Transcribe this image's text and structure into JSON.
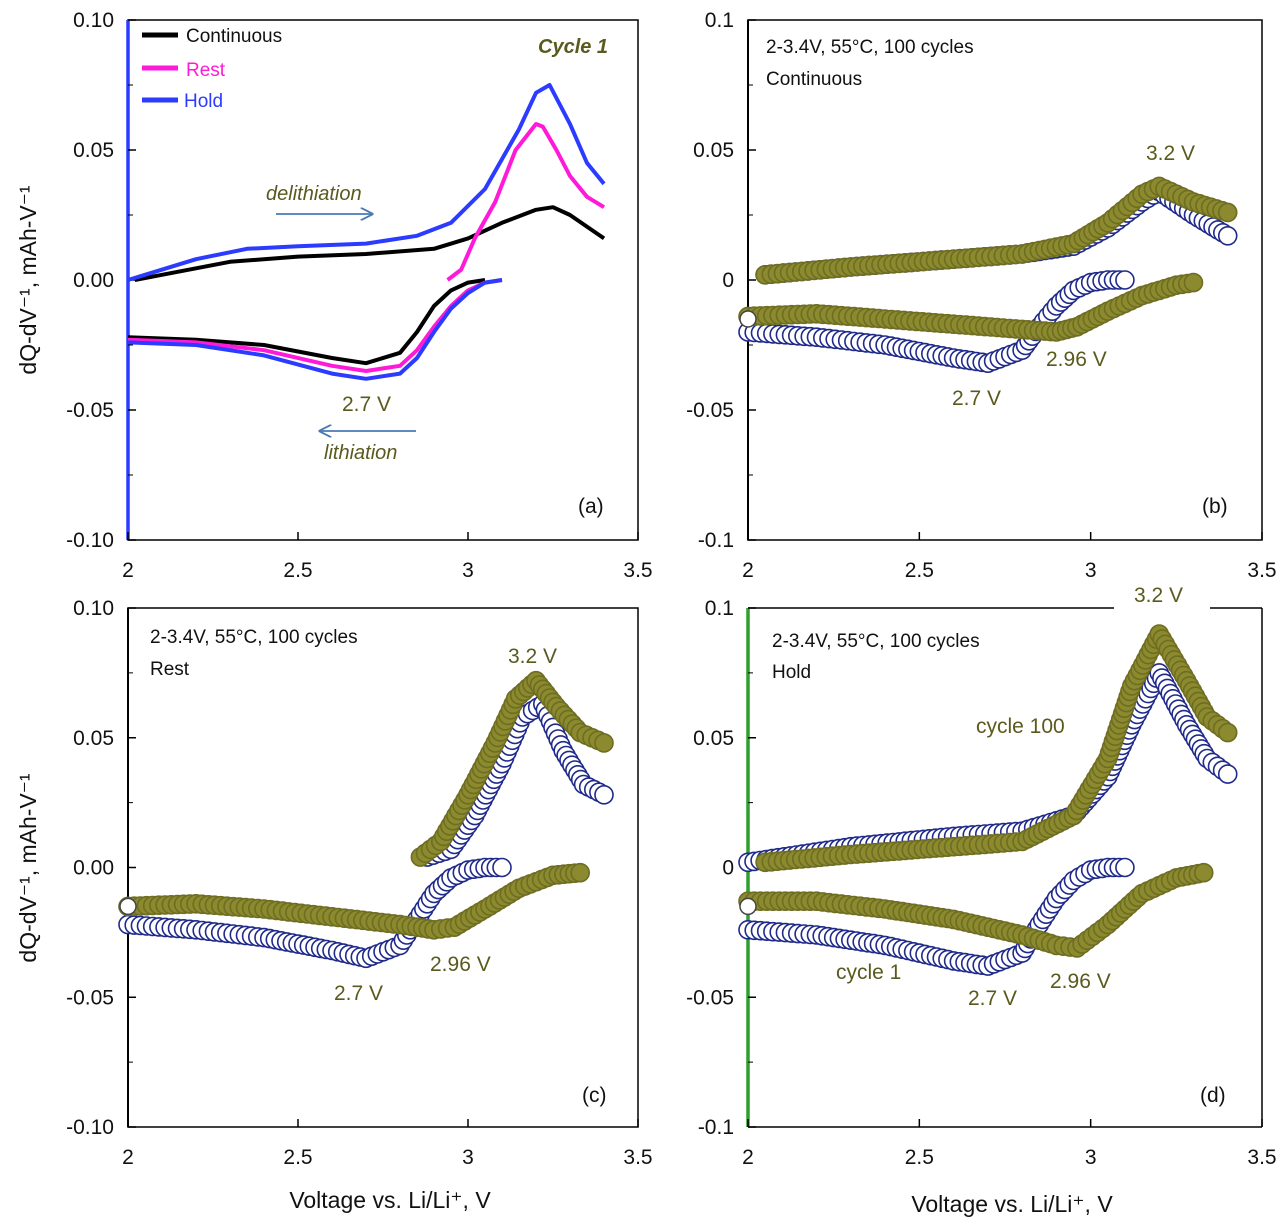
{
  "colors": {
    "continuous": "#000000",
    "rest": "#ff1ad9",
    "hold": "#2b3bff",
    "cycle1_marker": "#1f2a8a",
    "cycle100_marker": "#8b8a2e",
    "olive_text": "#5a5a1e",
    "arrow": "#4a7ab5",
    "green_axis": "#2da02d"
  },
  "axes": {
    "xlabel": "Voltage vs. Li/Li⁺, V",
    "ylabel": "dQ-dV⁻¹, mAh-V⁻¹",
    "xticks": [
      "2",
      "2.5",
      "3",
      "3.5"
    ],
    "yticks_left": [
      "0.10",
      "0.05",
      "0.00",
      "-0.05",
      "-0.10"
    ],
    "yticks_right": [
      "0.1",
      "0.05",
      "0",
      "-0.05",
      "-0.1"
    ]
  },
  "chart_data": [
    {
      "type": "line",
      "panel": "(a)",
      "title": "Cycle 1",
      "xlim": [
        2,
        3.5
      ],
      "ylim": [
        -0.1,
        0.1
      ],
      "legend": [
        "Continuous",
        "Rest",
        "Hold"
      ],
      "annotations": [
        "delithiation",
        "lithiation",
        "2.7 V"
      ],
      "series": [
        {
          "name": "Continuous",
          "branch": "delithiation",
          "x": [
            2.02,
            2.1,
            2.3,
            2.5,
            2.7,
            2.9,
            3.0,
            3.1,
            3.2,
            3.25,
            3.3,
            3.4
          ],
          "y": [
            0.0,
            0.002,
            0.007,
            0.009,
            0.01,
            0.012,
            0.016,
            0.022,
            0.027,
            0.028,
            0.025,
            0.016
          ]
        },
        {
          "name": "Continuous",
          "branch": "lithiation",
          "x": [
            2.0,
            2.2,
            2.4,
            2.6,
            2.7,
            2.8,
            2.85,
            2.9,
            2.95,
            3.0,
            3.05
          ],
          "y": [
            -0.022,
            -0.023,
            -0.025,
            -0.03,
            -0.032,
            -0.028,
            -0.02,
            -0.01,
            -0.004,
            -0.001,
            0.0
          ]
        },
        {
          "name": "Rest",
          "branch": "delithiation",
          "x": [
            2.94,
            2.98,
            3.02,
            3.08,
            3.14,
            3.2,
            3.22,
            3.26,
            3.3,
            3.35,
            3.4
          ],
          "y": [
            0.0,
            0.004,
            0.016,
            0.03,
            0.05,
            0.06,
            0.059,
            0.05,
            0.04,
            0.032,
            0.028
          ]
        },
        {
          "name": "Rest",
          "branch": "lithiation",
          "x": [
            2.0,
            2.2,
            2.4,
            2.6,
            2.7,
            2.8,
            2.85,
            2.9,
            2.95,
            3.0,
            3.05,
            3.1
          ],
          "y": [
            -0.023,
            -0.024,
            -0.027,
            -0.033,
            -0.035,
            -0.033,
            -0.027,
            -0.018,
            -0.01,
            -0.004,
            -0.001,
            0.0
          ]
        },
        {
          "name": "Hold",
          "branch": "delithiation",
          "x": [
            2.0,
            2.05,
            2.2,
            2.35,
            2.5,
            2.7,
            2.85,
            2.95,
            3.05,
            3.15,
            3.2,
            3.24,
            3.3,
            3.35,
            3.4
          ],
          "y": [
            0.0,
            0.002,
            0.008,
            0.012,
            0.013,
            0.014,
            0.017,
            0.022,
            0.035,
            0.058,
            0.072,
            0.075,
            0.06,
            0.045,
            0.037
          ]
        },
        {
          "name": "Hold",
          "branch": "lithiation",
          "x": [
            2.0,
            2.2,
            2.4,
            2.6,
            2.7,
            2.8,
            2.85,
            2.9,
            2.95,
            3.0,
            3.05,
            3.1
          ],
          "y": [
            -0.024,
            -0.025,
            -0.029,
            -0.036,
            -0.038,
            -0.036,
            -0.03,
            -0.02,
            -0.011,
            -0.005,
            -0.001,
            0.0
          ]
        }
      ]
    },
    {
      "type": "scatter",
      "panel": "(b)",
      "title": "2-3.4V, 55°C, 100 cycles",
      "subtitle": "Continuous",
      "xlim": [
        2,
        3.5
      ],
      "ylim": [
        -0.1,
        0.1
      ],
      "annotations": [
        "3.2 V",
        "2.96 V",
        "2.7 V"
      ],
      "series": [
        {
          "name": "cycle 1",
          "branch": "delithiation",
          "x": [
            2.05,
            2.3,
            2.6,
            2.8,
            2.95,
            3.05,
            3.15,
            3.2,
            3.3,
            3.4
          ],
          "y": [
            0.002,
            0.005,
            0.008,
            0.01,
            0.013,
            0.02,
            0.03,
            0.034,
            0.025,
            0.017
          ]
        },
        {
          "name": "cycle 1",
          "branch": "lithiation",
          "x": [
            2.0,
            2.2,
            2.4,
            2.6,
            2.7,
            2.8,
            2.85,
            2.9,
            2.95,
            3.0,
            3.05,
            3.1
          ],
          "y": [
            -0.02,
            -0.022,
            -0.025,
            -0.03,
            -0.032,
            -0.027,
            -0.018,
            -0.01,
            -0.004,
            -0.001,
            0.0,
            0.0
          ]
        },
        {
          "name": "cycle 100",
          "branch": "delithiation",
          "x": [
            2.05,
            2.3,
            2.6,
            2.8,
            2.95,
            3.05,
            3.15,
            3.2,
            3.3,
            3.4
          ],
          "y": [
            0.002,
            0.005,
            0.008,
            0.01,
            0.014,
            0.022,
            0.033,
            0.036,
            0.03,
            0.026
          ]
        },
        {
          "name": "cycle 100",
          "branch": "lithiation",
          "x": [
            2.0,
            2.2,
            2.4,
            2.6,
            2.8,
            2.9,
            2.96,
            3.05,
            3.15,
            3.25,
            3.3
          ],
          "y": [
            -0.014,
            -0.013,
            -0.015,
            -0.017,
            -0.019,
            -0.02,
            -0.018,
            -0.012,
            -0.006,
            -0.002,
            -0.001
          ]
        }
      ]
    },
    {
      "type": "scatter",
      "panel": "(c)",
      "title": "2-3.4V, 55°C, 100 cycles",
      "subtitle": "Rest",
      "xlim": [
        2,
        3.5
      ],
      "ylim": [
        -0.1,
        0.1
      ],
      "annotations": [
        "3.2 V",
        "2.96 V",
        "2.7 V"
      ],
      "series": [
        {
          "name": "cycle 1",
          "branch": "delithiation",
          "x": [
            2.88,
            2.95,
            3.02,
            3.1,
            3.16,
            3.22,
            3.28,
            3.34,
            3.4
          ],
          "y": [
            0.004,
            0.007,
            0.02,
            0.04,
            0.058,
            0.063,
            0.045,
            0.032,
            0.028
          ]
        },
        {
          "name": "cycle 1",
          "branch": "lithiation",
          "x": [
            2.0,
            2.2,
            2.4,
            2.6,
            2.7,
            2.8,
            2.85,
            2.9,
            2.95,
            3.0,
            3.05,
            3.1
          ],
          "y": [
            -0.022,
            -0.024,
            -0.027,
            -0.032,
            -0.035,
            -0.03,
            -0.02,
            -0.01,
            -0.004,
            -0.001,
            0.0,
            0.0
          ]
        },
        {
          "name": "cycle 100",
          "branch": "delithiation",
          "x": [
            2.86,
            2.92,
            3.0,
            3.08,
            3.14,
            3.2,
            3.26,
            3.33,
            3.4
          ],
          "y": [
            0.004,
            0.01,
            0.028,
            0.048,
            0.065,
            0.072,
            0.062,
            0.052,
            0.048
          ]
        },
        {
          "name": "cycle 100",
          "branch": "lithiation",
          "x": [
            2.0,
            2.2,
            2.4,
            2.6,
            2.8,
            2.9,
            2.96,
            3.05,
            3.15,
            3.25,
            3.33
          ],
          "y": [
            -0.015,
            -0.014,
            -0.016,
            -0.019,
            -0.022,
            -0.024,
            -0.023,
            -0.016,
            -0.008,
            -0.003,
            -0.002
          ]
        }
      ]
    },
    {
      "type": "scatter",
      "panel": "(d)",
      "title": "2-3.4V, 55°C, 100 cycles",
      "subtitle": "Hold",
      "xlim": [
        2,
        3.5
      ],
      "ylim": [
        -0.1,
        0.1
      ],
      "annotations": [
        "3.2 V",
        "cycle 100",
        "cycle 1",
        "2.7 V",
        "2.96 V"
      ],
      "series": [
        {
          "name": "cycle 1",
          "branch": "delithiation",
          "x": [
            2.0,
            2.3,
            2.6,
            2.8,
            2.95,
            3.05,
            3.12,
            3.2,
            3.28,
            3.34,
            3.4
          ],
          "y": [
            0.002,
            0.008,
            0.012,
            0.014,
            0.02,
            0.035,
            0.055,
            0.075,
            0.055,
            0.042,
            0.036
          ]
        },
        {
          "name": "cycle 1",
          "branch": "lithiation",
          "x": [
            2.0,
            2.2,
            2.4,
            2.6,
            2.7,
            2.8,
            2.85,
            2.9,
            2.95,
            3.0,
            3.05,
            3.1
          ],
          "y": [
            -0.024,
            -0.026,
            -0.03,
            -0.036,
            -0.038,
            -0.033,
            -0.022,
            -0.012,
            -0.005,
            -0.001,
            0.0,
            0.0
          ]
        },
        {
          "name": "cycle 100",
          "branch": "delithiation",
          "x": [
            2.05,
            2.3,
            2.6,
            2.8,
            2.95,
            3.05,
            3.12,
            3.2,
            3.28,
            3.34,
            3.4
          ],
          "y": [
            0.002,
            0.005,
            0.008,
            0.01,
            0.02,
            0.042,
            0.07,
            0.09,
            0.072,
            0.058,
            0.052
          ]
        },
        {
          "name": "cycle 100",
          "branch": "lithiation",
          "x": [
            2.0,
            2.2,
            2.4,
            2.6,
            2.8,
            2.9,
            2.96,
            3.05,
            3.15,
            3.25,
            3.33
          ],
          "y": [
            -0.013,
            -0.013,
            -0.016,
            -0.02,
            -0.026,
            -0.03,
            -0.031,
            -0.022,
            -0.01,
            -0.004,
            -0.002
          ]
        }
      ]
    }
  ]
}
